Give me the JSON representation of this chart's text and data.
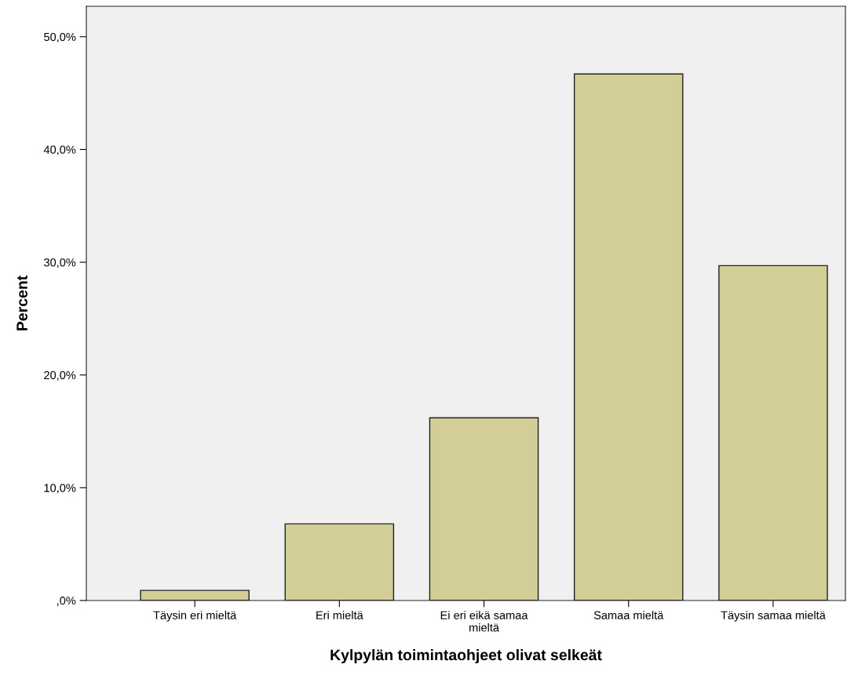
{
  "chart_data": {
    "type": "bar",
    "xlabel": "Kylpylän toimintaohjeet olivat selkeät",
    "ylabel": "Percent",
    "categories": [
      "Täysin eri mieltä",
      "Eri mieltä",
      "Ei eri eikä samaa\nmieltä",
      "Samaa mieltä",
      "Täysin samaa mieltä"
    ],
    "values": [
      0.9,
      6.8,
      16.2,
      46.7,
      29.7
    ],
    "color": "#d3ce97",
    "ylim": [
      0,
      52.7
    ],
    "yticks": [
      {
        "value": 0,
        "label": ",0%"
      },
      {
        "value": 10,
        "label": "10,0%"
      },
      {
        "value": 20,
        "label": "20,0%"
      },
      {
        "value": 30,
        "label": "30,0%"
      },
      {
        "value": 40,
        "label": "40,0%"
      },
      {
        "value": 50,
        "label": "50,0%"
      }
    ],
    "grid": false
  }
}
